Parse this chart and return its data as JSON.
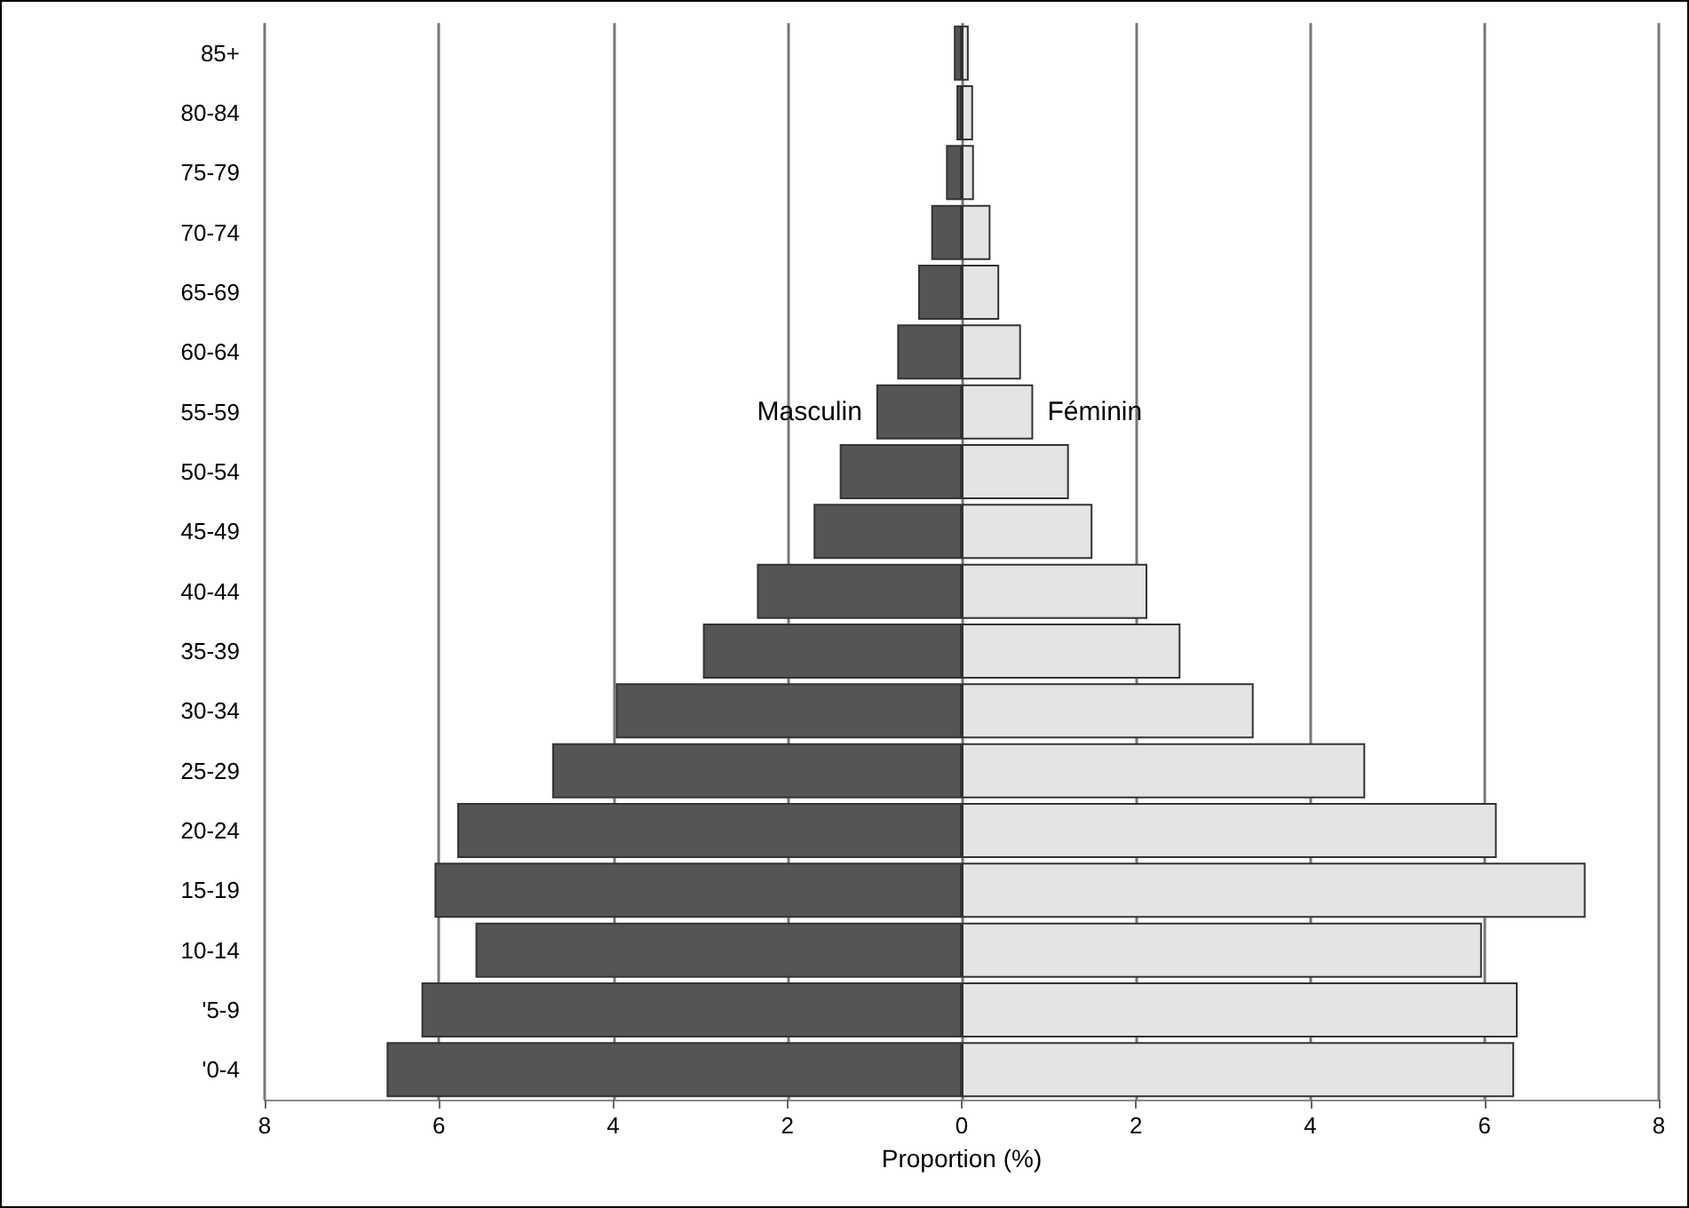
{
  "chart_data": {
    "type": "bar",
    "orientation": "horizontal",
    "xlabel": "Proportion (%)",
    "categories": [
      "85+",
      "80-84",
      "75-79",
      "70-74",
      "65-69",
      "60-64",
      "55-59",
      "50-54",
      "45-49",
      "40-44",
      "35-39",
      "30-34",
      "25-29",
      "20-24",
      "15-19",
      "10-14",
      "'5-9",
      "'0-4"
    ],
    "series": [
      {
        "name": "Masculin",
        "color": "#555555",
        "values": [
          -0.09,
          -0.06,
          -0.18,
          -0.35,
          -0.5,
          -0.74,
          -0.98,
          -1.4,
          -1.7,
          -2.35,
          -2.97,
          -3.97,
          -4.7,
          -5.79,
          -6.05,
          -5.58,
          -6.2,
          -6.6
        ]
      },
      {
        "name": "Féminin",
        "color": "#e4e4e4",
        "values": [
          0.08,
          0.13,
          0.14,
          0.33,
          0.43,
          0.68,
          0.82,
          1.23,
          1.5,
          2.13,
          2.51,
          3.35,
          4.63,
          6.14,
          7.16,
          5.97,
          6.38,
          6.34
        ]
      }
    ],
    "xlim": [
      -8,
      8
    ],
    "xticks": [
      {
        "value": -8,
        "label": "8"
      },
      {
        "value": -6,
        "label": "6"
      },
      {
        "value": -4,
        "label": "4"
      },
      {
        "value": -2,
        "label": "2"
      },
      0,
      2,
      4,
      6,
      8
    ],
    "grid": "x",
    "legend": false,
    "stacked": true
  }
}
